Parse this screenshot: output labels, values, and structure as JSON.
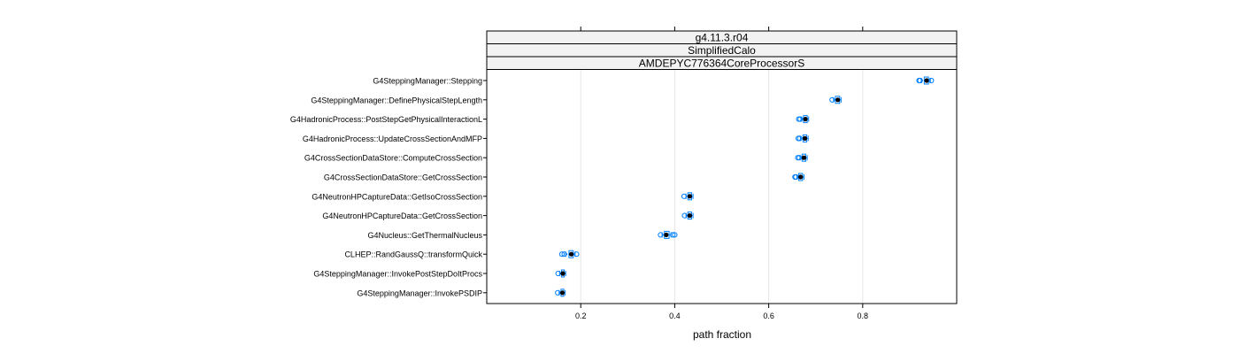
{
  "chart_data": {
    "type": "box",
    "strips": [
      "g4.11.3.r04",
      "SimplifiedCalo",
      "AMDEPYC776364CoreProcessorS"
    ],
    "xlabel": "path fraction",
    "xticks": [
      0.2,
      0.4,
      0.6,
      0.8
    ],
    "xlim": [
      0.0,
      1.0
    ],
    "grid": true,
    "categories": [
      "G4SteppingManager::Stepping",
      "G4SteppingManager::DefinePhysicalStepLength",
      "G4HadronicProcess::PostStepGetPhysicalInteractionL",
      "G4HadronicProcess::UpdateCrossSectionAndMFP",
      "G4CrossSectionDataStore::ComputeCrossSection",
      "G4CrossSectionDataStore::GetCrossSection",
      "G4NeutronHPCaptureData::GetIsoCrossSection",
      "G4NeutronHPCaptureData::GetCrossSection",
      "G4Nucleus::GetThermalNucleus",
      "CLHEP::RandGaussQ::transformQuick",
      "G4SteppingManager::InvokePostStepDoItProcs",
      "G4SteppingManager::InvokePSDIP"
    ],
    "boxes": [
      {
        "q1": 0.931,
        "median": 0.936,
        "q3": 0.94,
        "whisker_low": 0.925,
        "whisker_high": 0.944,
        "outliers": [
          0.92,
          0.922,
          0.946
        ]
      },
      {
        "q1": 0.742,
        "median": 0.747,
        "q3": 0.751,
        "whisker_low": 0.738,
        "whisker_high": 0.754,
        "outliers": [
          0.735
        ]
      },
      {
        "q1": 0.674,
        "median": 0.678,
        "q3": 0.682,
        "whisker_low": 0.67,
        "whisker_high": 0.685,
        "outliers": [
          0.664,
          0.667
        ]
      },
      {
        "q1": 0.673,
        "median": 0.677,
        "q3": 0.681,
        "whisker_low": 0.668,
        "whisker_high": 0.684,
        "outliers": [
          0.663,
          0.666
        ]
      },
      {
        "q1": 0.671,
        "median": 0.675,
        "q3": 0.679,
        "whisker_low": 0.667,
        "whisker_high": 0.682,
        "outliers": [
          0.662,
          0.665
        ]
      },
      {
        "q1": 0.664,
        "median": 0.668,
        "q3": 0.672,
        "whisker_low": 0.66,
        "whisker_high": 0.675,
        "outliers": [
          0.656,
          0.658
        ]
      },
      {
        "q1": 0.428,
        "median": 0.432,
        "q3": 0.436,
        "whisker_low": 0.424,
        "whisker_high": 0.439,
        "outliers": [
          0.42
        ]
      },
      {
        "q1": 0.428,
        "median": 0.432,
        "q3": 0.436,
        "whisker_low": 0.424,
        "whisker_high": 0.439,
        "outliers": [
          0.421
        ]
      },
      {
        "q1": 0.378,
        "median": 0.382,
        "q3": 0.388,
        "whisker_low": 0.373,
        "whisker_high": 0.392,
        "outliers": [
          0.37,
          0.396,
          0.4
        ]
      },
      {
        "q1": 0.175,
        "median": 0.18,
        "q3": 0.184,
        "whisker_low": 0.168,
        "whisker_high": 0.188,
        "outliers": [
          0.16,
          0.165,
          0.191
        ]
      },
      {
        "q1": 0.159,
        "median": 0.162,
        "q3": 0.165,
        "whisker_low": 0.155,
        "whisker_high": 0.168,
        "outliers": [
          0.152
        ]
      },
      {
        "q1": 0.158,
        "median": 0.161,
        "q3": 0.164,
        "whisker_low": 0.154,
        "whisker_high": 0.167,
        "outliers": [
          0.151
        ]
      }
    ],
    "colors": {
      "box": "#0080ff",
      "outlier": "#0080ff",
      "median": "#000000",
      "strip_fill": "#f2f2f2",
      "grid": "#e6e6e6",
      "frame": "#000000"
    }
  }
}
